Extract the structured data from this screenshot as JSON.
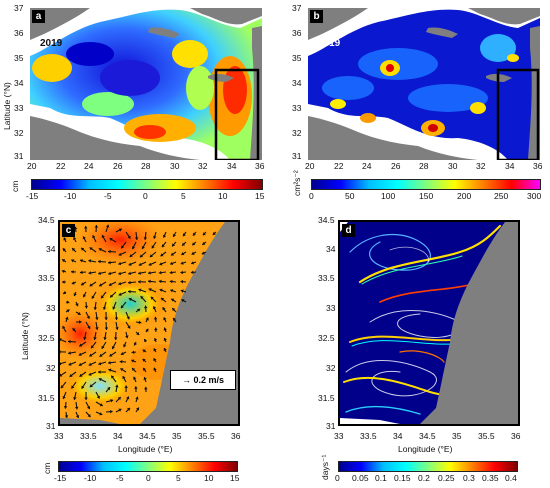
{
  "panels": {
    "a": {
      "label": "a",
      "year": "2019",
      "ylabel": "Latitude (°N)",
      "xticks": [
        "20",
        "22",
        "24",
        "26",
        "28",
        "30",
        "32",
        "34",
        "36"
      ],
      "yticks": [
        "37",
        "36",
        "35",
        "34",
        "33",
        "32",
        "31"
      ],
      "colorbar": {
        "unit": "cm",
        "ticks": [
          "-15",
          "-10",
          "-5",
          "0",
          "5",
          "10",
          "15"
        ],
        "range": [
          -15,
          15
        ]
      }
    },
    "b": {
      "label": "b",
      "year": "2019",
      "xticks": [
        "20",
        "22",
        "24",
        "26",
        "28",
        "30",
        "32",
        "34",
        "36"
      ],
      "yticks": [
        "37",
        "36",
        "35",
        "34",
        "33",
        "32",
        "31"
      ],
      "colorbar": {
        "unit": "cm²s⁻²",
        "ticks": [
          "0",
          "50",
          "100",
          "150",
          "200",
          "250",
          "300"
        ],
        "range": [
          0,
          300
        ]
      }
    },
    "c": {
      "label": "c",
      "ylabel": "Latitude (°N)",
      "xlabel": "Longitude (°E)",
      "xticks": [
        "33",
        "33.5",
        "34",
        "34.5",
        "35",
        "35.5",
        "36"
      ],
      "yticks": [
        "34.5",
        "34",
        "33.5",
        "33",
        "32.5",
        "32",
        "31.5",
        "31"
      ],
      "vector_legend": "0.2 m/s",
      "colorbar": {
        "unit": "cm",
        "ticks": [
          "-15",
          "-10",
          "-5",
          "0",
          "5",
          "10",
          "15"
        ],
        "range": [
          -15,
          15
        ]
      }
    },
    "d": {
      "label": "d",
      "xlabel": "Longitude (°E)",
      "xticks": [
        "33",
        "33.5",
        "34",
        "34.5",
        "35",
        "35.5",
        "36"
      ],
      "yticks": [
        "34.5",
        "34",
        "33.5",
        "33",
        "32.5",
        "32",
        "31.5",
        "31"
      ],
      "colorbar": {
        "unit": "days⁻¹",
        "ticks": [
          "0",
          "0.05",
          "0.1",
          "0.15",
          "0.2",
          "0.25",
          "0.3",
          "0.35",
          "0.4"
        ],
        "range": [
          0,
          0.4
        ]
      }
    }
  },
  "colors": {
    "land": "#7f7f7f",
    "jet": [
      "#00008f",
      "#0000ff",
      "#00bfff",
      "#00ffff",
      "#7fff7f",
      "#ffff00",
      "#ff7f00",
      "#ff0000",
      "#7f0000"
    ],
    "deep_blue": "#00008b"
  }
}
